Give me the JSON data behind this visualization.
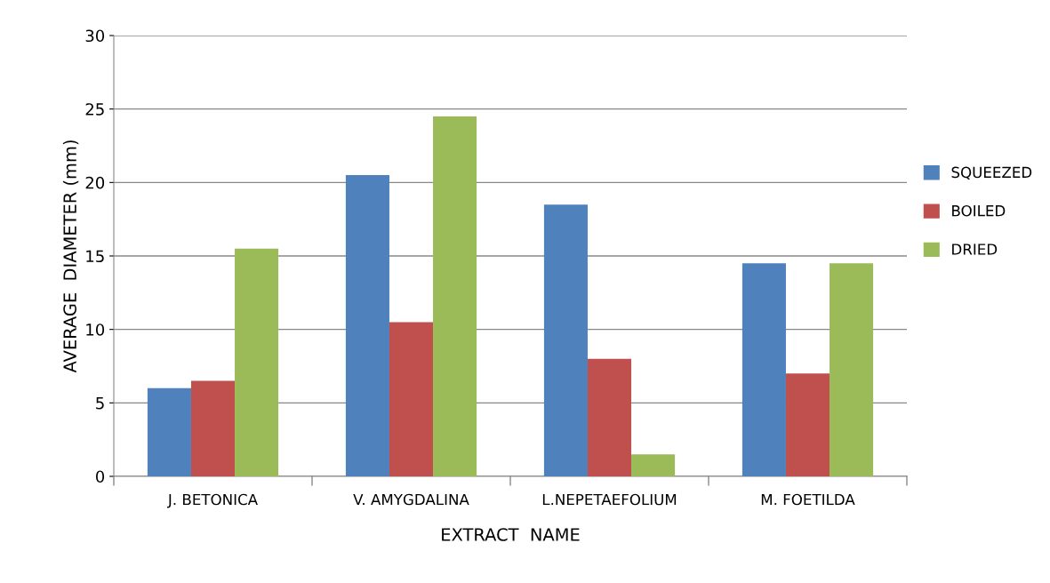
{
  "chart_data": {
    "type": "bar",
    "xlabel": "EXTRACT  NAME",
    "ylabel": "AVERAGE  DIAMETER (mm)",
    "categories": [
      "J. BETONICA",
      "V. AMYGDALINA",
      "L.NEPETAEFOLIUM",
      "M. FOETILDA"
    ],
    "series": [
      {
        "name": "SQUEEZED",
        "color": "#4f81bd",
        "values": [
          6,
          20.5,
          18.5,
          14.5
        ]
      },
      {
        "name": "BOILED",
        "color": "#c0504d",
        "values": [
          6.5,
          10.5,
          8,
          7
        ]
      },
      {
        "name": "DRIED",
        "color": "#9bbb59",
        "values": [
          15.5,
          24.5,
          1.5,
          14.5
        ]
      }
    ],
    "ylim": [
      0,
      30
    ],
    "yticks": [
      0,
      5,
      10,
      15,
      20,
      25,
      30
    ],
    "grid": "y",
    "legend": "right"
  }
}
